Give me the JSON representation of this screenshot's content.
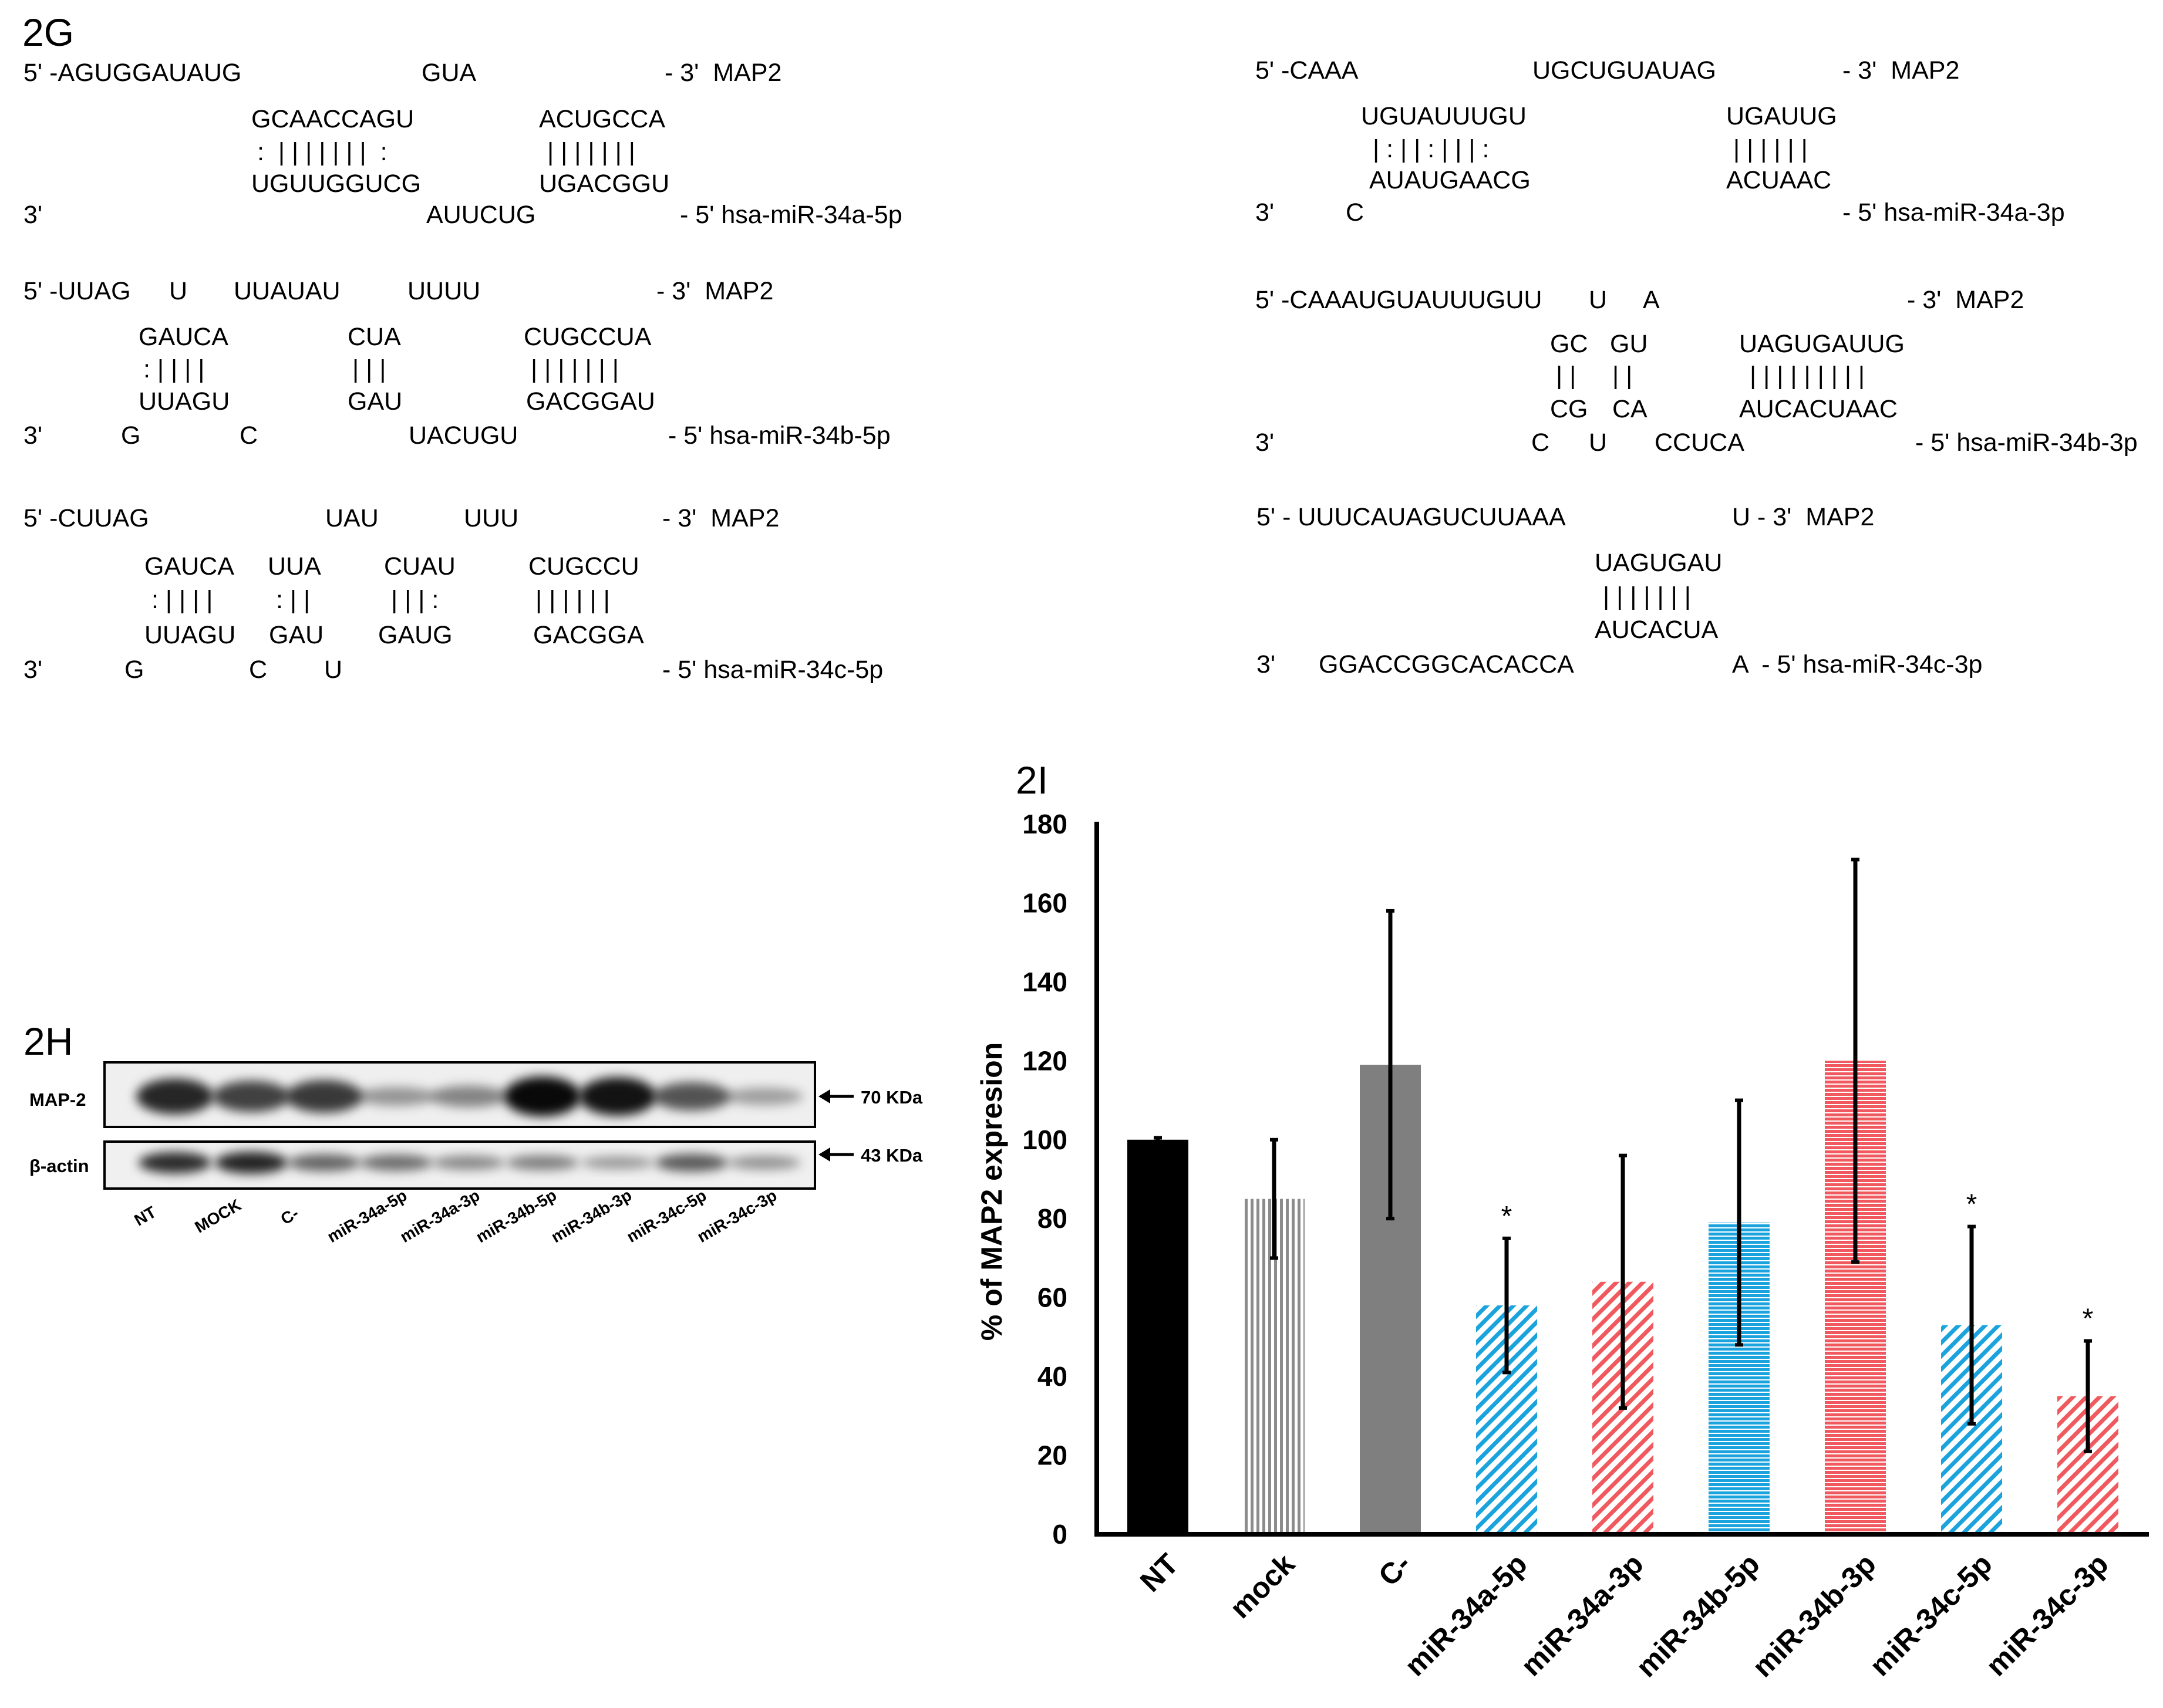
{
  "panel_2g": {
    "label": "2G",
    "alignments": [
      {
        "lines": [
          "5' -AGUGGAUAUG",
          "GUA",
          "- 3'  MAP2",
          "GCAACCAGU",
          "ACUGCCA",
          ":  | | | | | | |  :",
          "| | | | | | |",
          "UGUUGGUCG",
          "UGACGGU",
          "3'",
          "AUUCUG",
          "- 5' hsa-miR-34a-5p"
        ]
      },
      {
        "lines": [
          "5' -CAAA",
          "UGCUGUAUAG",
          "- 3'  MAP2",
          "UGUAUUUGU",
          "UGAUUG",
          "| : | | : | | | :",
          "| | | | | |",
          "AUAUGAACG",
          "ACUAAC",
          "3'",
          "C",
          "- 5' hsa-miR-34a-3p"
        ]
      },
      {
        "lines": [
          "5' -UUAG",
          "U",
          "UUAUAU",
          "UUUU",
          "- 3'  MAP2",
          "GAUCA",
          "CUA",
          "CUGCCUA",
          ": | | | |",
          "| | |",
          "| | | | | | |",
          "UUAGU",
          "GAU",
          "GACGGAU",
          "3'",
          "G",
          "C",
          "UACUGU",
          "- 5' hsa-miR-34b-5p"
        ]
      },
      {
        "lines": [
          "5' -CAAAUGUAUUUGUU",
          "U",
          "A",
          "- 3'  MAP2",
          "GC",
          "GU",
          "UAGUGAUUG",
          "| |",
          "| |",
          "| | | | | | | | |",
          "CG",
          "CA",
          "AUCACUAAC",
          "3'",
          "C",
          "U",
          "CCUCA",
          "- 5' hsa-miR-34b-3p"
        ]
      },
      {
        "lines": [
          "5' -CUUAG",
          "UAU",
          "UUU",
          "- 3'  MAP2",
          "GAUCA",
          "UUA",
          "CUAU",
          "CUGCCU",
          ": | | | |",
          ": | |",
          "| | | :",
          "| | | | | |",
          "UUAGU",
          "GAU",
          "GAUG",
          "GACGGA",
          "3'",
          "G",
          "C",
          "U",
          "- 5' hsa-miR-34c-5p"
        ]
      },
      {
        "lines": [
          "5' - UUUCAUAGUCUUAAA",
          "U - 3'  MAP2",
          "UAGUGAU",
          "| | | | | | |",
          "AUCACUA",
          "3'",
          "GGACCGGCACACCA",
          "A  - 5' hsa-miR-34c-3p"
        ]
      }
    ]
  },
  "panel_2h": {
    "label": "2H",
    "rows": [
      {
        "name": "MAP-2",
        "size": "70 KDa"
      },
      {
        "name": "β-actin",
        "size": "43 KDa"
      }
    ],
    "lanes": [
      "NT",
      "MOCK",
      "C-",
      "miR-34a-5p",
      "miR-34a-3p",
      "miR-34b-5p",
      "miR-34b-3p",
      "miR-34c-5p",
      "miR-34c-3p"
    ],
    "map2_intensity": [
      0.85,
      0.7,
      0.75,
      0.25,
      0.35,
      1.0,
      0.95,
      0.6,
      0.2
    ],
    "actin_intensity": [
      0.85,
      0.9,
      0.55,
      0.5,
      0.35,
      0.4,
      0.25,
      0.6,
      0.3
    ]
  },
  "chart_data": {
    "type": "bar",
    "panel_label": "2I",
    "ylabel": "% of MAP2 expresion",
    "ylim": [
      0,
      180
    ],
    "yticks": [
      0,
      20,
      40,
      60,
      80,
      100,
      120,
      140,
      160,
      180
    ],
    "categories": [
      "NT",
      "mock",
      "C-",
      "miR-34a-5p",
      "miR-34a-3p",
      "miR-34b-5p",
      "miR-34b-3p",
      "miR-34c-5p",
      "miR-34c-3p"
    ],
    "values": [
      100,
      85,
      119,
      58,
      64,
      79,
      120,
      53,
      35
    ],
    "error": [
      0.5,
      15,
      39,
      17,
      32,
      31,
      51,
      25,
      14
    ],
    "significant": [
      false,
      false,
      false,
      true,
      false,
      false,
      false,
      true,
      true
    ],
    "significance_mark": "*",
    "fills": [
      "solid-black",
      "vstripe-gray",
      "solid-gray",
      "diag-blue",
      "diag-red",
      "hstripe-blue",
      "hstripe-red",
      "diag-blue",
      "diag-red"
    ],
    "colors": {
      "black": "#000000",
      "gray": "#7f7f7f",
      "blue": "#1aa3dc",
      "red": "#f05a5f",
      "stripe_gray": "#8c8c8c"
    }
  }
}
